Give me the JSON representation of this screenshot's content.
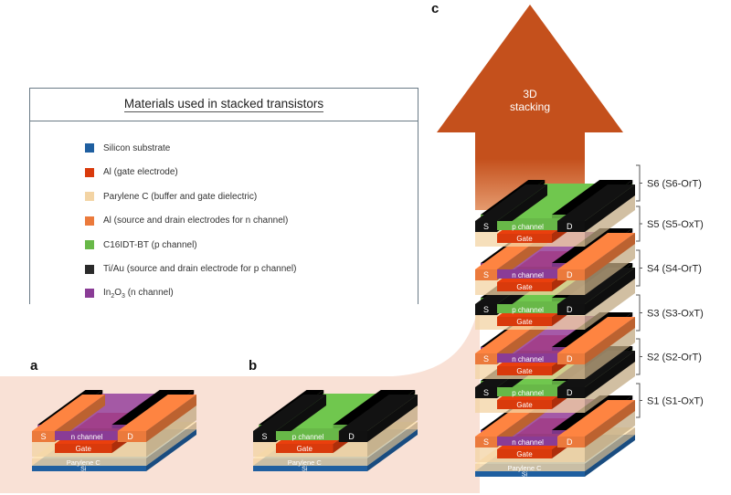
{
  "panels": {
    "a": "a",
    "b": "b",
    "c": "c"
  },
  "legend": {
    "title": "Materials used in stacked transistors",
    "items": [
      {
        "label": "Silicon substrate",
        "color": "#1f5fa0"
      },
      {
        "label": "Al (gate electrode)",
        "color": "#d93a0c"
      },
      {
        "label": "Parylene C (buffer and gate dielectric)",
        "color": "#f3d4a4"
      },
      {
        "label": "Al (source and drain electrodes for n channel)",
        "color": "#eb7a3c"
      },
      {
        "label": "C16IDT-BT (p channel)",
        "color": "#68b848"
      },
      {
        "label": "Ti/Au (source and drain electrode for p channel)",
        "color": "#2a2a2a"
      },
      {
        "label_main": "In",
        "sub1": "2",
        "mid": "O",
        "sub2": "3",
        "label_rest": " (n channel)",
        "color": "#8a3c96"
      }
    ]
  },
  "device_labels": {
    "source": "S",
    "drain": "D",
    "n_channel": "n channel",
    "p_channel": "p channel",
    "gate": "Gate",
    "parylene": "Parylene C",
    "si": "Si"
  },
  "arrow": {
    "line1": "3D",
    "line2": "stacking",
    "color": "#c4501c"
  },
  "stack_layers": [
    {
      "label": "S1 (S1-OxT)",
      "type": "n"
    },
    {
      "label": "S2 (S2-OrT)",
      "type": "p"
    },
    {
      "label": "S3 (S3-OxT)",
      "type": "n"
    },
    {
      "label": "S4 (S4-OrT)",
      "type": "p"
    },
    {
      "label": "S5 (S5-OxT)",
      "type": "n"
    },
    {
      "label": "S6 (S6-OrT)",
      "type": "p"
    }
  ],
  "colors": {
    "background_swoosh": "#f9e1d6",
    "si": "#1f5fa0",
    "parylene": "#f3d4a4",
    "gate": "#d93a0c",
    "n_sd": "#eb7a3c",
    "n_channel": "#8a3c96",
    "p_sd": "#111111",
    "p_channel": "#68b848"
  }
}
